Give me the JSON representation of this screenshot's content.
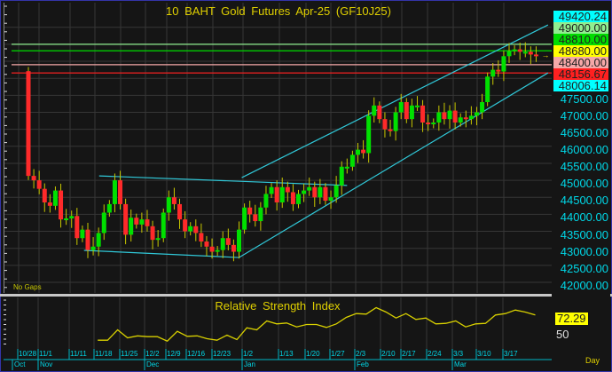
{
  "chart_data": {
    "type": "candlestick",
    "title": "10 BAHT Gold Futures Apr-25 (GF10J25)",
    "note": "No Gaps",
    "y_range": [
      41800,
      49600
    ],
    "y_ticks": [
      42000,
      42500,
      43000,
      43500,
      44000,
      44500,
      45000,
      45500,
      46000,
      46500,
      47000,
      47500
    ],
    "y_tick_labels": [
      "42000.00",
      "42500.00",
      "43000.00",
      "43500.00",
      "44000.00",
      "44500.00",
      "45000.00",
      "45500.00",
      "46000.00",
      "46500.00",
      "47000.00",
      "47500.00"
    ],
    "first_open": 48210,
    "closes": [
      45130,
      45000,
      44750,
      44350,
      44250,
      44700,
      43850,
      43880,
      43950,
      43300,
      43550,
      42950,
      43050,
      43450,
      44050,
      44300,
      45000,
      44300,
      43400,
      43900,
      43700,
      43850,
      43650,
      43250,
      43300,
      44050,
      44500,
      44300,
      43850,
      43500,
      43650,
      43450,
      43200,
      43050,
      42900,
      42950,
      43300,
      43100,
      42900,
      43550,
      44200,
      44000,
      43800,
      44200,
      44600,
      44800,
      44350,
      44800,
      44650,
      44300,
      44600,
      44700,
      44800,
      44500,
      44800,
      44400,
      44500,
      44850,
      45400,
      45400,
      45750,
      45900,
      45800,
      46900,
      47200,
      46800,
      46500,
      46450,
      47000,
      47300,
      46800,
      47200,
      47200,
      46700,
      46650,
      46700,
      47000,
      46800,
      47050,
      46700,
      46850,
      46800,
      46900,
      47000,
      47300,
      48050,
      48250,
      48200,
      48650,
      48800,
      48850,
      48780,
      48780,
      48700,
      48680
    ],
    "horizontal_levels": [
      {
        "value": 49000.0,
        "label": "49000.00",
        "color": "#90ee90"
      },
      {
        "value": 48810.0,
        "label": "48810.00",
        "color": "#00cc00"
      },
      {
        "value": 48400.0,
        "label": "48400.00",
        "color": "#f4a8a8"
      },
      {
        "value": 48156.67,
        "label": "48156.67",
        "color": "#e02020"
      }
    ],
    "price_tags": [
      {
        "label": "49420.24",
        "color": "#00ffff"
      },
      {
        "label": "49000.00",
        "color": "#90ee90"
      },
      {
        "label": "48810.00",
        "color": "#00dd00"
      },
      {
        "label": "48680.00",
        "color": "#ffff00"
      },
      {
        "label": "48400.00",
        "color": "#f4a8a8"
      },
      {
        "label": "48156.67",
        "color": "#ff2020"
      },
      {
        "label": "48006.14",
        "color": "#00ffff"
      }
    ],
    "trendlines": [
      {
        "from": [
          39.5,
          45080
        ],
        "to": [
          96.2,
          49570
        ]
      },
      {
        "from": [
          39,
          42730
        ],
        "to": [
          96.2,
          48160
        ]
      },
      {
        "from": [
          13.1,
          45130
        ],
        "to": [
          59,
          44850
        ]
      },
      {
        "from": [
          10.3,
          42940
        ],
        "to": [
          39,
          42730
        ]
      }
    ],
    "rsi": {
      "title": "Relative Strength Index",
      "last_label": "72.29",
      "level_label": "50",
      "range": [
        22,
        96
      ],
      "start_bar": 13,
      "values": [
        34.4,
        34.4,
        50,
        38,
        41,
        39.8,
        39.8,
        33.1,
        47.8,
        40.2,
        41,
        36.7,
        34.4,
        42,
        35.3,
        53.1,
        50,
        63.3,
        58.9,
        60.2,
        54.4,
        58,
        58,
        53.6,
        58.9,
        68.7,
        74.4,
        73.6,
        83.3,
        76.7,
        67.8,
        74.4,
        65.6,
        67.8,
        58.9,
        59.8,
        63.3,
        54.4,
        58.9,
        59.8,
        72.2,
        74.4,
        79.8,
        76.7,
        72.2
      ]
    },
    "date_labels": [
      "10/28",
      "11/1",
      "11/11",
      "11/18",
      "11/25",
      "12/2",
      "12/9",
      "12/16",
      "12/23",
      "1/2",
      "1/13",
      "1/20",
      "1/27",
      "2/3",
      "2/10",
      "2/17",
      "2/24",
      "3/3",
      "3/10",
      "3/17"
    ],
    "month_labels": [
      "Oct",
      "Nov",
      "Dec",
      "Jan",
      "Feb",
      "Mar"
    ],
    "period": "Day"
  },
  "colors": {
    "up": "#00e000",
    "down": "#ff2a2a",
    "wick": "#c8c800",
    "channel": "#30c8d8",
    "rsi_line": "#d8d000"
  }
}
